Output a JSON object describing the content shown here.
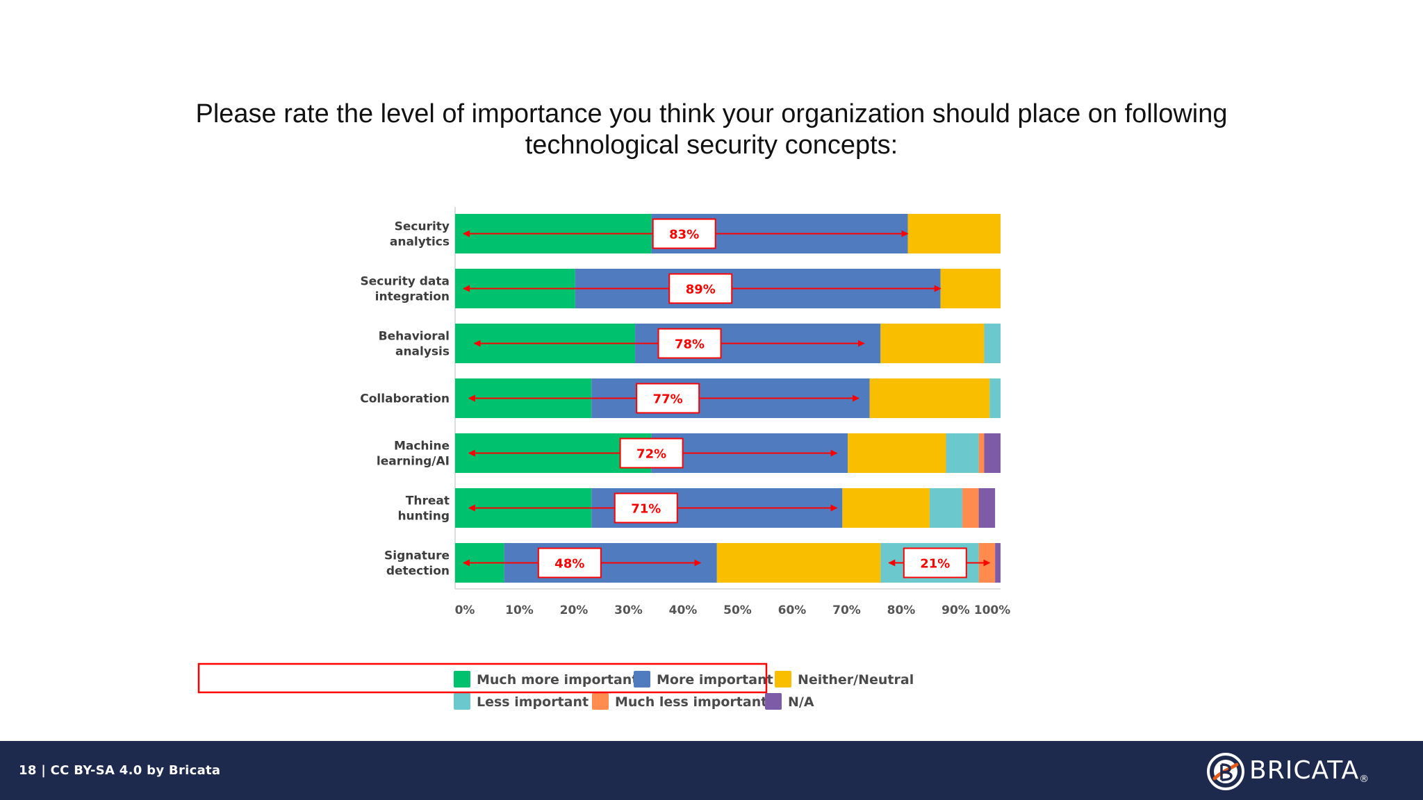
{
  "title": {
    "line1": "Please rate the level of importance you think your organization should place on following",
    "line2": "technological security concepts:"
  },
  "chart_data": {
    "type": "bar",
    "orientation": "horizontal",
    "stacked": true,
    "title": "Please rate the level of importance you think your organization should place on following technological security concepts:",
    "xlabel": "",
    "ylabel": "",
    "xlim": [
      0,
      100
    ],
    "ticks": [
      "0%",
      "10%",
      "20%",
      "30%",
      "40%",
      "50%",
      "60%",
      "70%",
      "80%",
      "90%",
      "100%"
    ],
    "categories": [
      [
        "Security",
        "analytics"
      ],
      [
        "Security data",
        "integration"
      ],
      [
        "Behavioral",
        "analysis"
      ],
      [
        "Collaboration"
      ],
      [
        "Machine",
        "learning/AI"
      ],
      [
        "Threat",
        "hunting"
      ],
      [
        "Signature",
        "detection"
      ]
    ],
    "series": [
      {
        "name": "Much more important",
        "color": "#00c16e",
        "values": [
          36,
          22,
          33,
          25,
          36,
          25,
          9
        ]
      },
      {
        "name": "More important",
        "color": "#507cbf",
        "values": [
          47,
          67,
          45,
          51,
          36,
          46,
          39
        ]
      },
      {
        "name": "Neither/Neutral",
        "color": "#f9be00",
        "values": [
          17,
          11,
          19,
          22,
          18,
          16,
          30
        ]
      },
      {
        "name": "Less important",
        "color": "#6bc8cd",
        "values": [
          0,
          0,
          3,
          2,
          6,
          6,
          18
        ]
      },
      {
        "name": "Much less important",
        "color": "#ff8b4f",
        "values": [
          0,
          0,
          0,
          0,
          1,
          3,
          3
        ]
      },
      {
        "name": "N/A",
        "color": "#7d5ba6",
        "values": [
          0,
          0,
          0,
          0,
          3,
          3,
          1
        ]
      }
    ],
    "annotations": [
      {
        "row": 0,
        "label": "83%",
        "from": 0,
        "to": 83,
        "center": 42
      },
      {
        "row": 1,
        "label": "89%",
        "from": 0,
        "to": 89,
        "center": 45
      },
      {
        "row": 2,
        "label": "78%",
        "from": 2,
        "to": 75,
        "center": 43
      },
      {
        "row": 3,
        "label": "77%",
        "from": 1,
        "to": 74,
        "center": 39
      },
      {
        "row": 4,
        "label": "72%",
        "from": 1,
        "to": 70,
        "center": 36
      },
      {
        "row": 5,
        "label": "71%",
        "from": 1,
        "to": 70,
        "center": 35
      },
      {
        "row": 6,
        "label": "48%",
        "from": 0,
        "to": 45,
        "center": 21
      },
      {
        "row": 6,
        "label": "21%",
        "from": 78,
        "to": 98,
        "center": 88
      }
    ],
    "legend": {
      "placement": "bottom",
      "rows": [
        [
          "Much more important",
          "More important",
          "Neither/Neutral"
        ],
        [
          "Less important",
          "Much less important",
          "N/A"
        ]
      ]
    },
    "annotation_color": "#ff0000"
  },
  "footer": {
    "text": "18 | CC BY-SA 4.0 by Bricata",
    "brand": "BRICATA",
    "brand_mark": "®"
  }
}
